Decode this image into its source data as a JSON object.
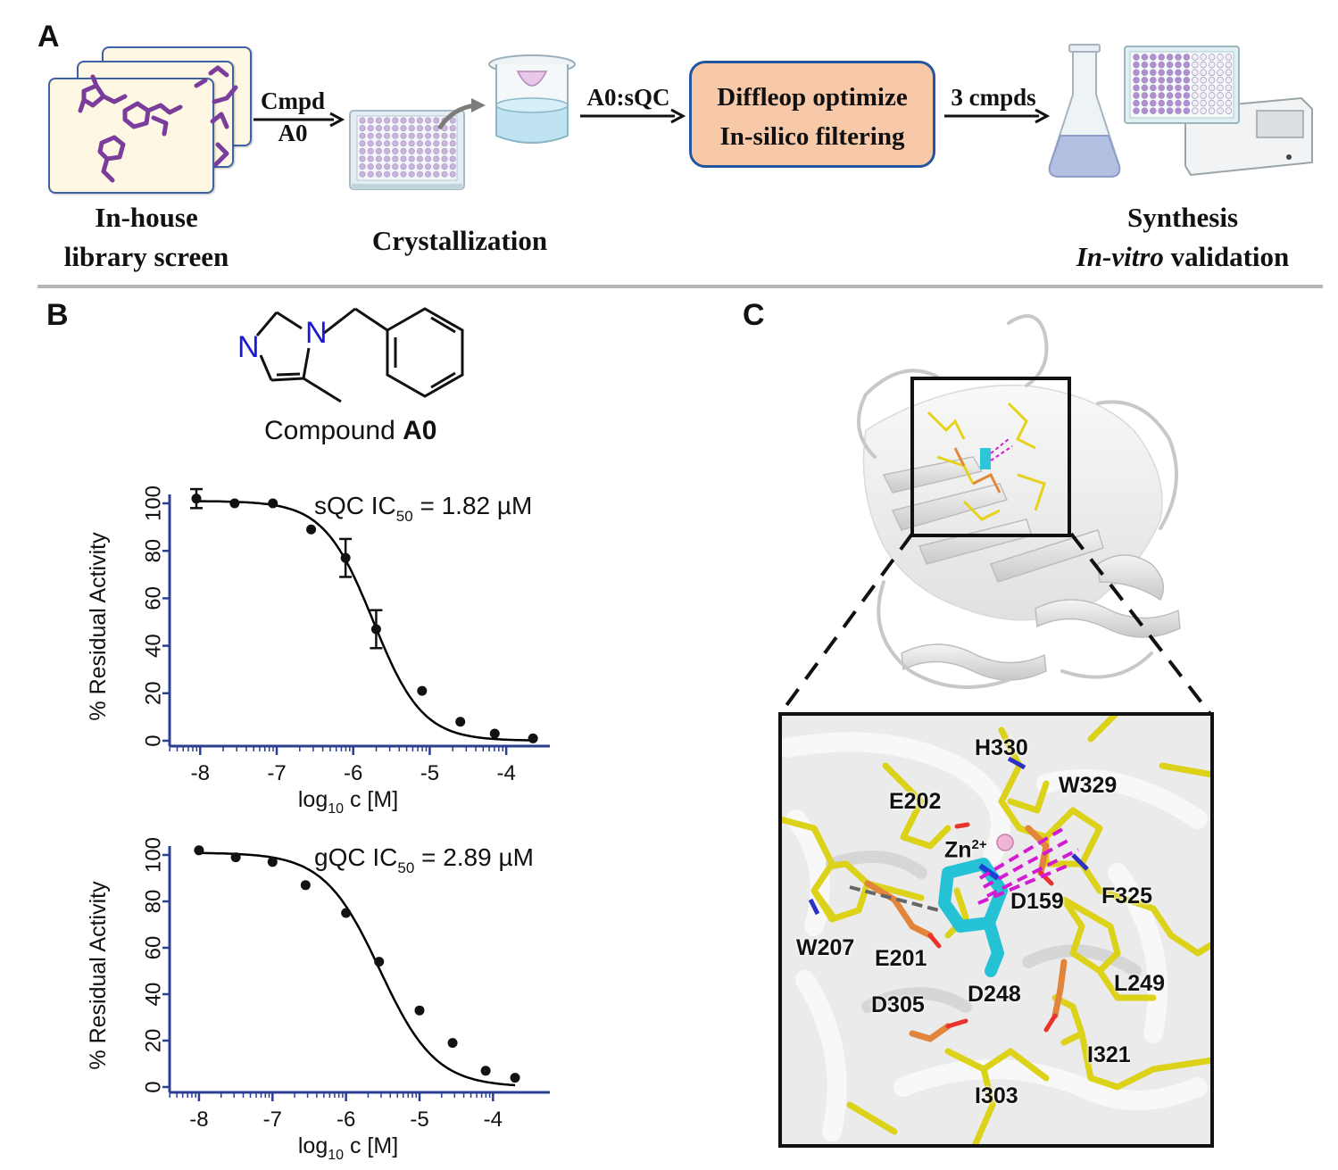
{
  "panel_a": {
    "letter": "A",
    "library_caption_line1": "In-house",
    "library_caption_line2": "library screen",
    "arrow1_line1": "Cmpd",
    "arrow1_line2": "A0",
    "crystallization_caption": "Crystallization",
    "arrow2_label": "A0:sQC",
    "box_line1": "Diffleop optimize",
    "box_line2": "In-silico filtering",
    "arrow3_label": "3 cmpds",
    "synthesis_caption_line1": "Synthesis",
    "synthesis_caption_italic": "In-vitro",
    "synthesis_caption_rest": " validation"
  },
  "panel_b": {
    "letter": "B",
    "compound_prefix": "Compound ",
    "compound_name": "A0",
    "atom_n1": "N",
    "atom_n2": "N"
  },
  "panel_c": {
    "letter": "C",
    "residues": [
      "H330",
      "W329",
      "E202",
      "Zn",
      "D159",
      "F325",
      "W207",
      "E201",
      "L249",
      "D305",
      "D248",
      "I321",
      "I303"
    ],
    "zn_charge": "2+"
  },
  "chart_data": [
    {
      "type": "scatter",
      "name_label": "sQC",
      "title_prefix": "sQC IC",
      "title_sub": "50",
      "title_suffix": " = 1.82 µM",
      "ylabel": "% Residual Activity",
      "xlabel_prefix": "log",
      "xlabel_sub": "10",
      "xlabel_suffix": " c [M]",
      "xlim": [
        -8.4,
        -3.5
      ],
      "ylim": [
        0,
        100
      ],
      "xticks": [
        -8,
        -7,
        -6,
        -5,
        -4
      ],
      "yticks": [
        0,
        20,
        40,
        60,
        80,
        100
      ],
      "ic50_log": -5.74,
      "hill": 1.0,
      "x": [
        -8.05,
        -7.55,
        -7.05,
        -6.55,
        -6.1,
        -5.7,
        -5.1,
        -4.6,
        -4.15,
        -3.65
      ],
      "y": [
        102,
        100,
        100,
        89,
        77,
        47,
        21,
        8,
        3,
        1
      ],
      "err": [
        4,
        0,
        0,
        0,
        8,
        8,
        0,
        0,
        0,
        0
      ],
      "curve_color": "#000000",
      "axis_color": "#2c3f8f"
    },
    {
      "type": "scatter",
      "name_label": "gQC",
      "title_prefix": "gQC IC",
      "title_sub": "50",
      "title_suffix": " = 2.89 µM",
      "ylabel": "% Residual Activity",
      "xlabel_prefix": "log",
      "xlabel_sub": "10",
      "xlabel_suffix": " c [M]",
      "xlim": [
        -8.4,
        -3.3
      ],
      "ylim": [
        0,
        100
      ],
      "xticks": [
        -8,
        -7,
        -6,
        -5,
        -4
      ],
      "yticks": [
        0,
        20,
        40,
        60,
        80,
        100
      ],
      "ic50_log": -5.54,
      "hill": 0.85,
      "x": [
        -8,
        -7.5,
        -7,
        -6.55,
        -6.0,
        -5.55,
        -5.0,
        -4.55,
        -4.1,
        -3.7
      ],
      "y": [
        102,
        99,
        97,
        87,
        75,
        54,
        33,
        19,
        7,
        4
      ],
      "err": [
        0,
        0,
        0,
        0,
        0,
        0,
        0,
        0,
        0,
        0
      ],
      "curve_color": "#000000",
      "axis_color": "#2c3f8f"
    }
  ]
}
